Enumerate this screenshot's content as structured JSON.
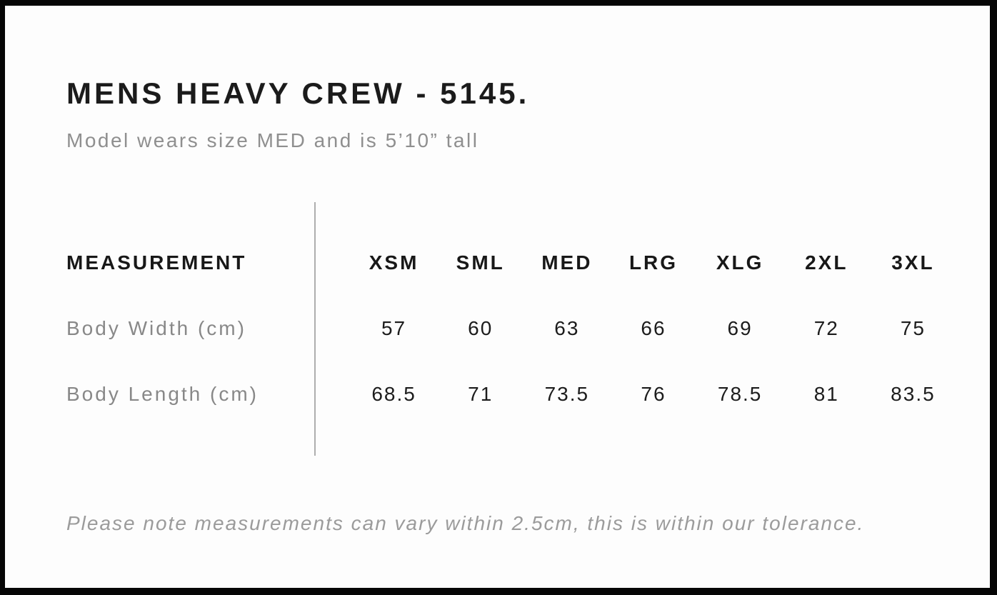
{
  "page": {
    "title": "MENS HEAVY CREW - 5145.",
    "subtitle": "Model wears size MED and is 5’10” tall",
    "footnote": "Please note measurements can vary within 2.5cm, this is within our tolerance."
  },
  "size_chart": {
    "measurement_header": "MEASUREMENT",
    "sizes": [
      "XSM",
      "SML",
      "MED",
      "LRG",
      "XLG",
      "2XL",
      "3XL"
    ],
    "rows": [
      {
        "label": "Body Width (cm)",
        "values": [
          "57",
          "60",
          "63",
          "66",
          "69",
          "72",
          "75"
        ]
      },
      {
        "label": "Body Length (cm)",
        "values": [
          "68.5",
          "71",
          "73.5",
          "76",
          "78.5",
          "81",
          "83.5"
        ]
      }
    ]
  },
  "colors": {
    "frame": "#060606",
    "page_background": "#fdfdfd",
    "text_primary": "#1b1b1b",
    "text_muted": "#8f8f8f",
    "divider": "#aeaeae"
  }
}
